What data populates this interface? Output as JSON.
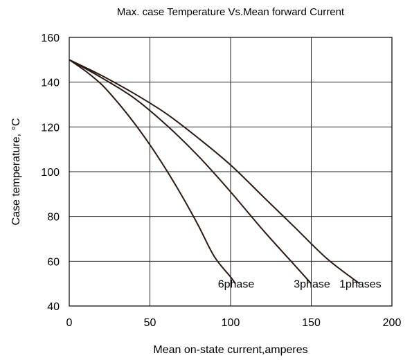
{
  "chart_data": {
    "type": "line",
    "title": "Max. case Temperature Vs.Mean forward Current",
    "xlabel": "Mean on-state current,amperes",
    "ylabel": "Case temperature, °C",
    "xlim": [
      0,
      200
    ],
    "ylim": [
      40,
      160
    ],
    "xticks": [
      0,
      50,
      100,
      150,
      200
    ],
    "yticks": [
      40,
      60,
      80,
      100,
      120,
      140,
      160
    ],
    "grid": true,
    "series": [
      {
        "name": "6phase",
        "x": [
          0,
          10,
          20,
          30,
          40,
          50,
          60,
          70,
          80,
          90,
          100,
          103
        ],
        "y": [
          150,
          145,
          139,
          131,
          122,
          112,
          101,
          89,
          76,
          62,
          53,
          50
        ]
      },
      {
        "name": "3phase",
        "x": [
          0,
          20,
          40,
          60,
          80,
          100,
          120,
          140,
          150
        ],
        "y": [
          150,
          142,
          133,
          121,
          107,
          91,
          74,
          58,
          50
        ]
      },
      {
        "name": "1phases",
        "x": [
          0,
          20,
          40,
          60,
          80,
          100,
          120,
          140,
          160,
          180
        ],
        "y": [
          150,
          143,
          135,
          126,
          115,
          103,
          89,
          75,
          61,
          50
        ]
      }
    ]
  }
}
